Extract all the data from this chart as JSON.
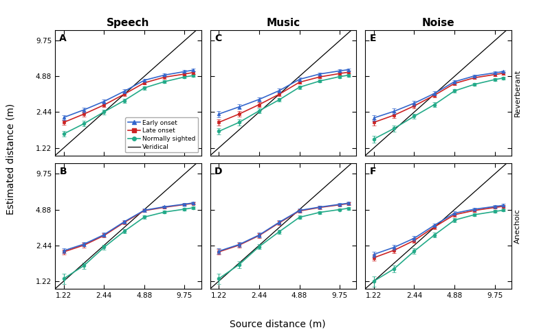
{
  "x_values": [
    1.22,
    1.73,
    2.44,
    3.45,
    4.88,
    6.9,
    9.75,
    11.31
  ],
  "x_ticks": [
    1.22,
    2.44,
    4.88,
    9.75
  ],
  "x_labels": [
    "1.22",
    "2.44",
    "4.88",
    "9.75"
  ],
  "y_ticks": [
    1.22,
    2.44,
    4.88,
    9.75
  ],
  "y_labels": [
    "1.22",
    "2.44",
    "4.88",
    "9.75"
  ],
  "ylim": [
    1.05,
    12.0
  ],
  "xlim": [
    1.05,
    13.0
  ],
  "panels": {
    "A": {
      "early_onset": [
        2.2,
        2.55,
        3.0,
        3.65,
        4.52,
        5.0,
        5.35,
        5.5
      ],
      "late_onset": [
        2.0,
        2.35,
        2.8,
        3.45,
        4.3,
        4.8,
        5.1,
        5.25
      ],
      "normally_sighted": [
        1.6,
        1.95,
        2.45,
        3.05,
        3.9,
        4.4,
        4.82,
        4.95
      ],
      "early_err": [
        0.1,
        0.12,
        0.12,
        0.13,
        0.14,
        0.13,
        0.14,
        0.14
      ],
      "late_err": [
        0.1,
        0.11,
        0.12,
        0.13,
        0.14,
        0.13,
        0.14,
        0.14
      ],
      "normal_err": [
        0.09,
        0.1,
        0.11,
        0.12,
        0.13,
        0.12,
        0.13,
        0.13
      ]
    },
    "B": {
      "early_onset": [
        2.2,
        2.5,
        3.0,
        3.85,
        4.82,
        5.15,
        5.42,
        5.55
      ],
      "late_onset": [
        2.15,
        2.45,
        2.95,
        3.8,
        4.78,
        5.1,
        5.38,
        5.5
      ],
      "normally_sighted": [
        1.28,
        1.65,
        2.35,
        3.2,
        4.22,
        4.65,
        4.92,
        5.05
      ],
      "early_err": [
        0.1,
        0.11,
        0.12,
        0.13,
        0.14,
        0.13,
        0.12,
        0.12
      ],
      "late_err": [
        0.1,
        0.11,
        0.12,
        0.13,
        0.14,
        0.13,
        0.12,
        0.12
      ],
      "normal_err": [
        0.12,
        0.1,
        0.11,
        0.12,
        0.13,
        0.12,
        0.11,
        0.11
      ]
    },
    "C": {
      "early_onset": [
        2.35,
        2.7,
        3.12,
        3.7,
        4.6,
        5.1,
        5.42,
        5.55
      ],
      "late_onset": [
        2.0,
        2.35,
        2.82,
        3.45,
        4.35,
        4.82,
        5.15,
        5.28
      ],
      "normally_sighted": [
        1.68,
        2.0,
        2.5,
        3.1,
        3.95,
        4.45,
        4.85,
        4.98
      ],
      "early_err": [
        0.14,
        0.13,
        0.13,
        0.14,
        0.15,
        0.14,
        0.14,
        0.14
      ],
      "late_err": [
        0.11,
        0.12,
        0.12,
        0.13,
        0.14,
        0.13,
        0.13,
        0.13
      ],
      "normal_err": [
        0.1,
        0.11,
        0.11,
        0.12,
        0.13,
        0.12,
        0.12,
        0.12
      ]
    },
    "D": {
      "early_onset": [
        2.18,
        2.48,
        2.98,
        3.82,
        4.8,
        5.12,
        5.4,
        5.52
      ],
      "late_onset": [
        2.15,
        2.45,
        2.95,
        3.78,
        4.75,
        5.08,
        5.35,
        5.48
      ],
      "normally_sighted": [
        1.28,
        1.68,
        2.38,
        3.18,
        4.2,
        4.62,
        4.88,
        5.0
      ],
      "early_err": [
        0.11,
        0.12,
        0.13,
        0.14,
        0.15,
        0.14,
        0.13,
        0.13
      ],
      "late_err": [
        0.11,
        0.12,
        0.13,
        0.14,
        0.15,
        0.14,
        0.13,
        0.13
      ],
      "normal_err": [
        0.12,
        0.11,
        0.12,
        0.13,
        0.14,
        0.13,
        0.12,
        0.12
      ]
    },
    "E": {
      "early_onset": [
        2.18,
        2.48,
        2.9,
        3.5,
        4.4,
        4.92,
        5.22,
        5.35
      ],
      "late_onset": [
        2.0,
        2.3,
        2.75,
        3.38,
        4.25,
        4.75,
        5.05,
        5.18
      ],
      "normally_sighted": [
        1.45,
        1.78,
        2.25,
        2.82,
        3.68,
        4.18,
        4.58,
        4.72
      ],
      "early_err": [
        0.12,
        0.13,
        0.13,
        0.14,
        0.15,
        0.14,
        0.13,
        0.13
      ],
      "late_err": [
        0.11,
        0.12,
        0.12,
        0.13,
        0.14,
        0.13,
        0.13,
        0.13
      ],
      "normal_err": [
        0.1,
        0.11,
        0.11,
        0.12,
        0.14,
        0.13,
        0.12,
        0.12
      ]
    },
    "F": {
      "early_onset": [
        2.05,
        2.35,
        2.8,
        3.6,
        4.55,
        4.92,
        5.18,
        5.3
      ],
      "late_onset": [
        1.92,
        2.22,
        2.68,
        3.48,
        4.42,
        4.8,
        5.08,
        5.2
      ],
      "normally_sighted": [
        1.22,
        1.55,
        2.18,
        2.98,
        3.98,
        4.42,
        4.7,
        4.82
      ],
      "early_err": [
        0.11,
        0.12,
        0.13,
        0.14,
        0.15,
        0.14,
        0.13,
        0.13
      ],
      "late_err": [
        0.11,
        0.12,
        0.13,
        0.14,
        0.15,
        0.14,
        0.13,
        0.13
      ],
      "normal_err": [
        0.12,
        0.11,
        0.12,
        0.13,
        0.14,
        0.13,
        0.12,
        0.12
      ]
    }
  },
  "colors": {
    "early_onset": "#3366cc",
    "late_onset": "#cc2222",
    "normally_sighted": "#22aa88"
  },
  "row_labels": [
    "Reverberant",
    "Anechoic"
  ],
  "col_labels": [
    "Speech",
    "Music",
    "Noise"
  ],
  "panel_order": [
    [
      "A",
      "C",
      "E"
    ],
    [
      "B",
      "D",
      "F"
    ]
  ],
  "xlabel": "Source distance (m)",
  "ylabel": "Estimated distance (m)",
  "legend_labels": [
    "Early onset",
    "Late onset",
    "Normally sighted",
    "Veridical"
  ]
}
